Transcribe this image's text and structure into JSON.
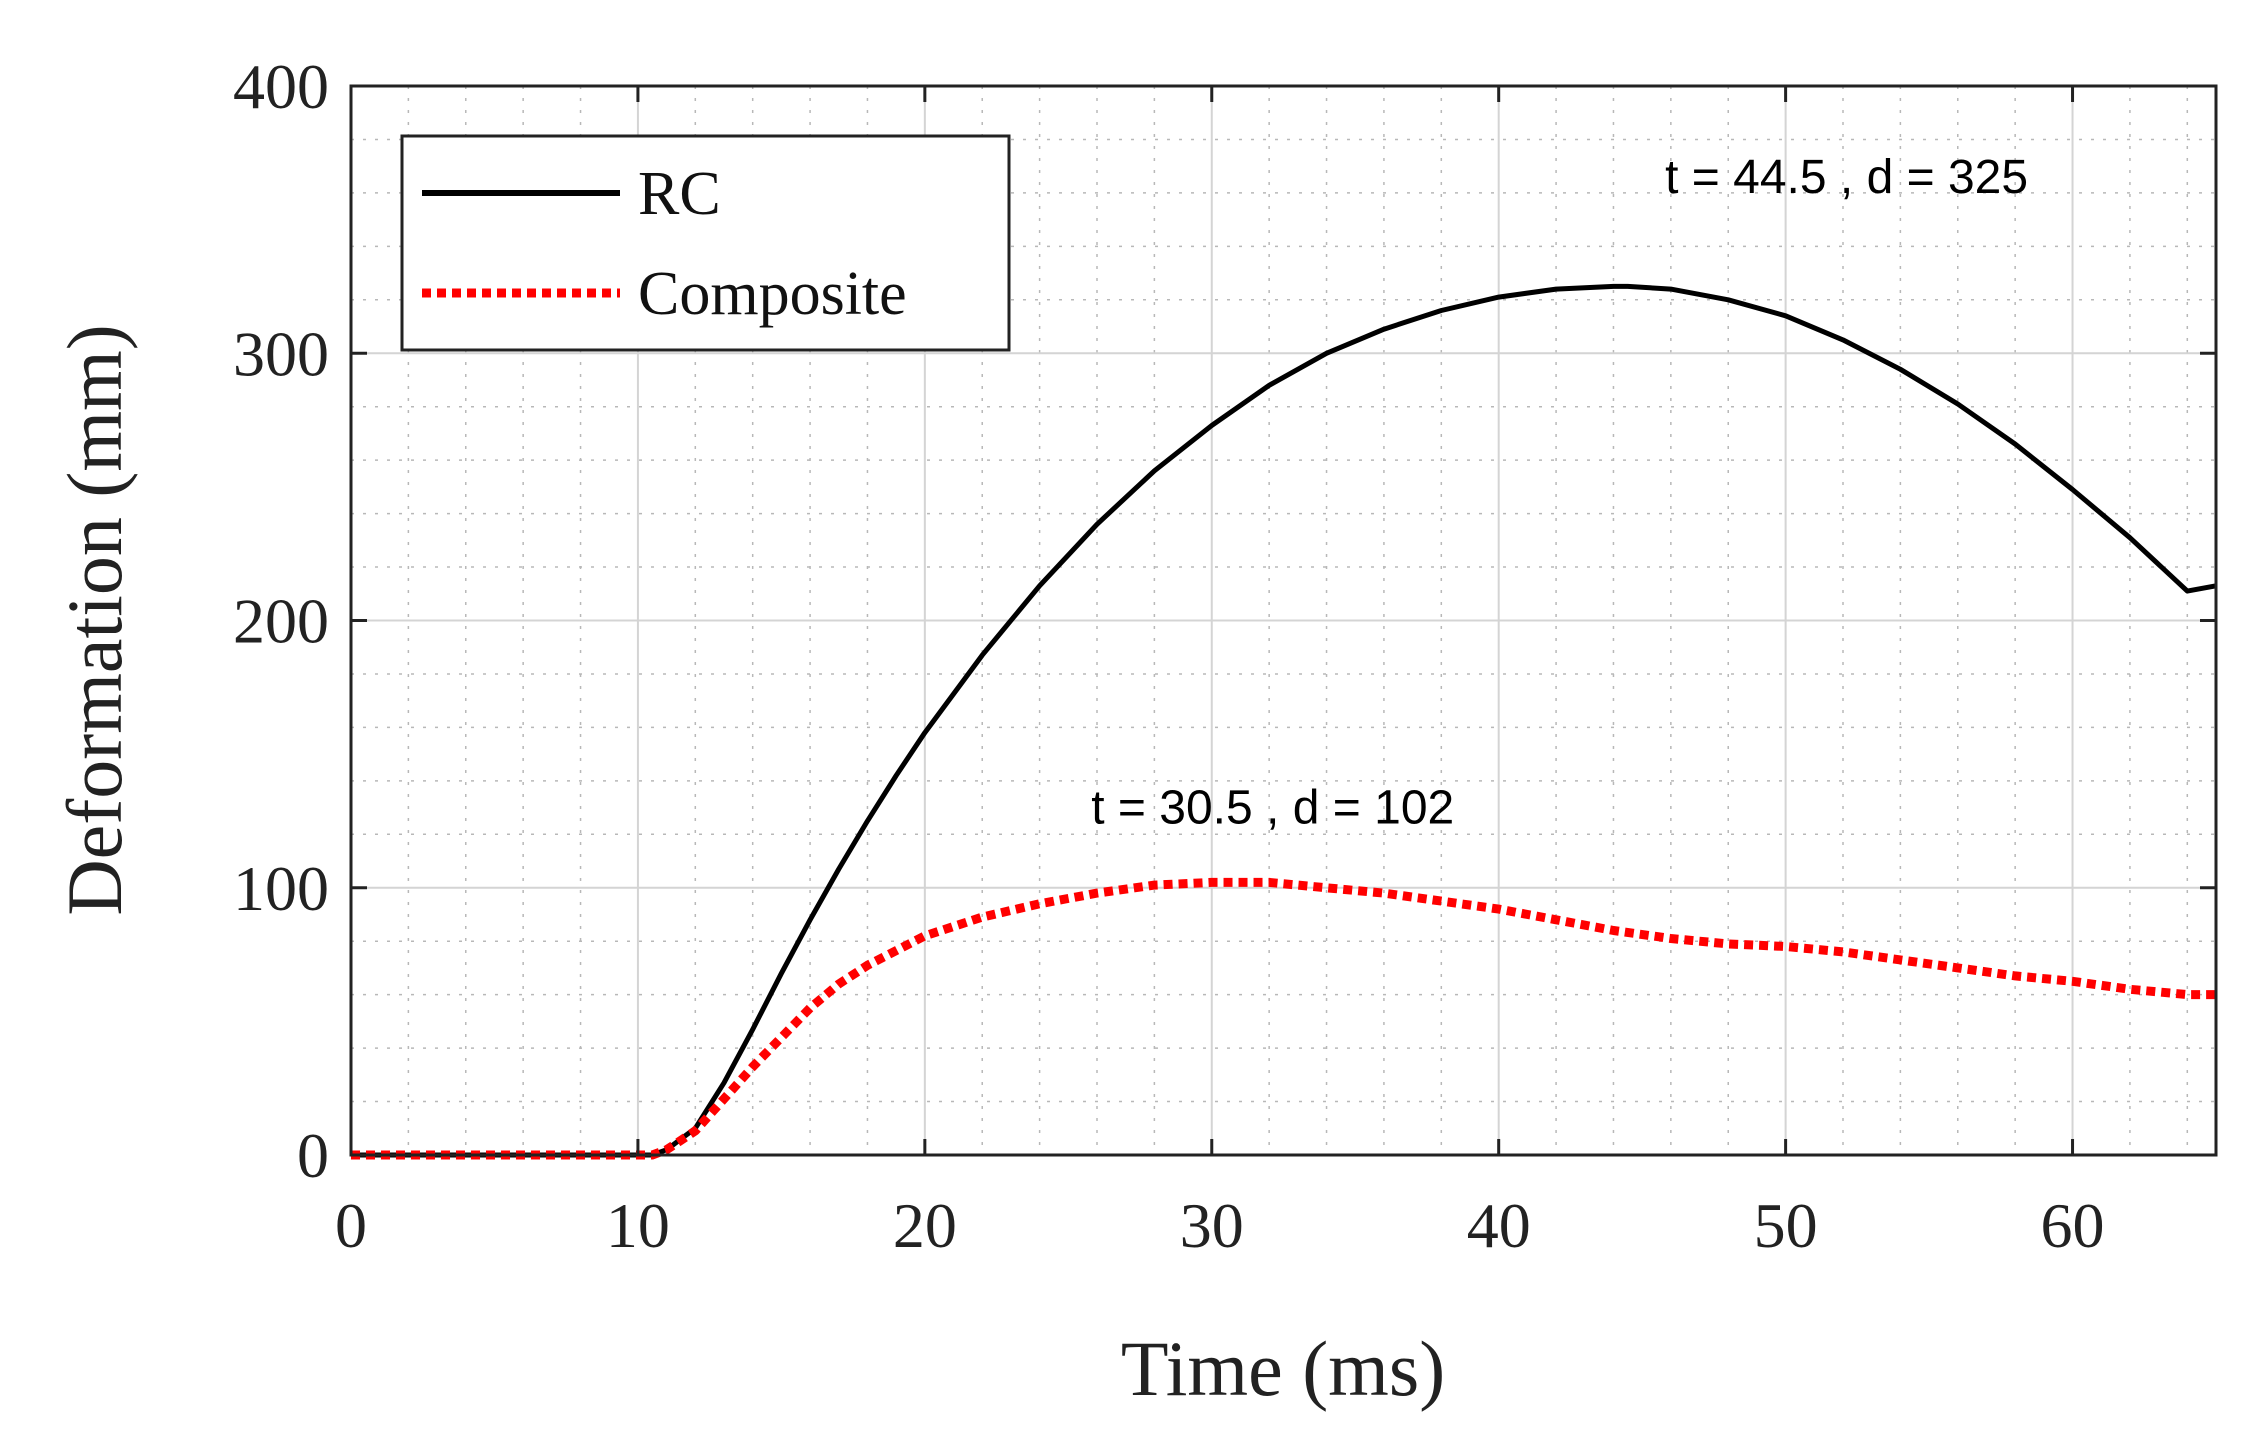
{
  "chart_data": {
    "type": "line",
    "title": "",
    "xlabel": "Time (ms)",
    "ylabel": "Deformation (mm)",
    "xlim": [
      0,
      65
    ],
    "ylim": [
      0,
      400
    ],
    "xticks": [
      0,
      10,
      20,
      30,
      40,
      50,
      60
    ],
    "yticks": [
      0,
      100,
      200,
      300,
      400
    ],
    "grid": true,
    "minor_grid": true,
    "legend_position": "top-left",
    "series": [
      {
        "name": "RC",
        "color": "#000000",
        "style": "solid",
        "x": [
          0,
          10.5,
          11,
          12,
          13,
          14,
          15,
          16,
          17,
          18,
          19,
          20,
          22,
          24,
          26,
          28,
          30,
          32,
          34,
          36,
          38,
          40,
          42,
          44,
          44.5,
          46,
          48,
          50,
          52,
          54,
          56,
          58,
          60,
          62,
          64,
          65
        ],
        "y": [
          0,
          0,
          2,
          10,
          27,
          47,
          68,
          88,
          107,
          125,
          142,
          158,
          187,
          213,
          236,
          256,
          273,
          288,
          300,
          309,
          316,
          321,
          324,
          325,
          325,
          324,
          320,
          314,
          305,
          294,
          281,
          266,
          249,
          231,
          211,
          213
        ]
      },
      {
        "name": "Composite",
        "color": "#ff0000",
        "style": "dotted",
        "x": [
          0,
          10.5,
          11,
          12,
          13,
          14,
          15,
          16,
          17,
          18,
          20,
          22,
          24,
          26,
          28,
          30,
          30.5,
          32,
          34,
          36,
          38,
          40,
          42,
          44,
          46,
          48,
          50,
          52,
          54,
          56,
          58,
          60,
          62,
          64,
          65
        ],
        "y": [
          0,
          0,
          2,
          9,
          21,
          33,
          44,
          55,
          64,
          71,
          82,
          89,
          94,
          98,
          101,
          102,
          102,
          102,
          100,
          98,
          95,
          92,
          88,
          84,
          81,
          79,
          78,
          76,
          73,
          70,
          67,
          65,
          62,
          60,
          60
        ]
      }
    ],
    "annotations": [
      {
        "text": "t = 44.5 , d = 325",
        "x": 44.5,
        "y": 325
      },
      {
        "text": "t = 30.5 , d = 102",
        "x": 30.5,
        "y": 102
      }
    ]
  },
  "colors": {
    "grid_major": "#d4d4d4",
    "grid_minor": "#b8b8b8",
    "axis": "#222222"
  }
}
